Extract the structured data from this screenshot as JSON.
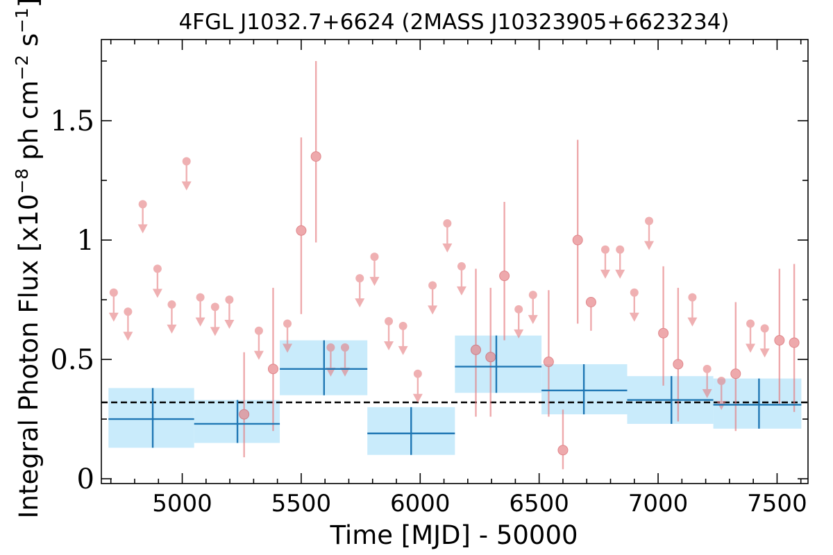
{
  "chart_data": {
    "type": "scatter",
    "title": "4FGL J1032.7+6624 (2MASS J10323905+6623234)",
    "xlabel": "Time [MJD] - 50000",
    "ylabel_parts": {
      "prefix": "Integral Photon Flux [x10",
      "exp1": "−8",
      "mid": " ph cm",
      "exp2": "−2",
      "s": " s",
      "exp3": "−1",
      "suffix": "]"
    },
    "xlim": [
      4660,
      7630
    ],
    "ylim": [
      -0.02,
      1.84
    ],
    "xticks": [
      5000,
      5500,
      6000,
      6500,
      7000,
      7500
    ],
    "xtick_labels": [
      "5000",
      "5500",
      "6000",
      "6500",
      "7000",
      "7500"
    ],
    "yticks": [
      0,
      0.5,
      1,
      1.5
    ],
    "ytick_labels": [
      "0",
      "0.5",
      "1",
      "1.5"
    ],
    "mean_flux": 0.32,
    "colors": {
      "monthly": "#e57c80",
      "yearly_line": "#1f77b4",
      "yearly_band": "#c9ebfb",
      "mean": "#000000"
    },
    "series": [
      {
        "kind": "upper_limits",
        "x": [
          4712,
          4772,
          4834,
          4896,
          4956,
          5018,
          5076,
          5138,
          5198,
          5322,
          5442,
          5624,
          5684,
          5746,
          5808,
          5868,
          5928,
          5990,
          6052,
          6114,
          6174,
          6414,
          6474,
          6778,
          6840,
          6900,
          6962,
          7144,
          7206,
          7266,
          7388,
          7448
        ],
        "y": [
          0.78,
          0.7,
          1.15,
          0.88,
          0.73,
          1.33,
          0.76,
          0.72,
          0.75,
          0.62,
          0.65,
          0.55,
          0.55,
          0.84,
          0.93,
          0.66,
          0.64,
          0.44,
          0.81,
          1.07,
          0.89,
          0.71,
          0.77,
          0.96,
          0.96,
          0.78,
          1.08,
          0.76,
          0.46,
          0.41,
          0.65,
          0.63
        ]
      },
      {
        "kind": "detections",
        "x": [
          5260,
          5382,
          5500,
          5562,
          6234,
          6296,
          6354,
          6540,
          6600,
          6662,
          6718,
          7022,
          7084,
          7326,
          7510,
          7572
        ],
        "y": [
          0.27,
          0.46,
          1.04,
          1.35,
          0.54,
          0.51,
          0.85,
          0.49,
          0.12,
          1.0,
          0.74,
          0.61,
          0.48,
          0.44,
          0.58,
          0.57
        ],
        "y_low": [
          0.09,
          0.2,
          0.69,
          0.99,
          0.26,
          0.26,
          0.58,
          0.26,
          0.04,
          0.65,
          0.62,
          0.39,
          0.24,
          0.2,
          0.31,
          0.28
        ],
        "y_high": [
          0.53,
          0.8,
          1.43,
          1.75,
          0.88,
          0.8,
          1.16,
          0.79,
          0.29,
          1.42,
          0.74,
          0.89,
          0.8,
          0.74,
          0.88,
          0.9
        ]
      },
      {
        "kind": "yearly_bins",
        "x": [
          4876,
          5232,
          5596,
          5962,
          6320,
          6688,
          7056,
          7424
        ],
        "x_low": [
          4690,
          5050,
          5410,
          5778,
          6146,
          6510,
          6870,
          7232
        ],
        "x_high": [
          5050,
          5410,
          5778,
          6146,
          6510,
          6870,
          7232,
          7602
        ],
        "y": [
          0.25,
          0.23,
          0.46,
          0.19,
          0.47,
          0.37,
          0.33,
          0.31
        ],
        "y_low": [
          0.13,
          0.15,
          0.35,
          0.1,
          0.36,
          0.27,
          0.23,
          0.21
        ],
        "y_high": [
          0.38,
          0.33,
          0.58,
          0.3,
          0.6,
          0.48,
          0.43,
          0.42
        ]
      }
    ]
  }
}
